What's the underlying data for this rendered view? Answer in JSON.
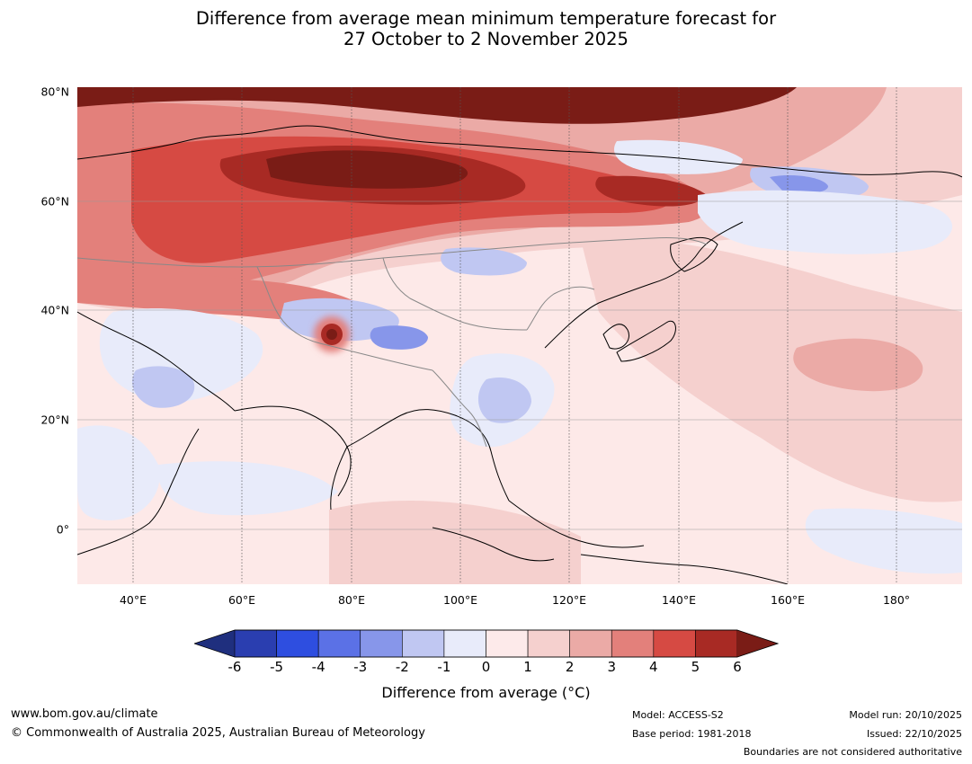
{
  "title": {
    "line1": "Difference from average mean minimum temperature forecast for",
    "line2": "27 October to 2 November 2025"
  },
  "map": {
    "region": "Asia",
    "lat_range": [
      -10,
      80
    ],
    "lon_range": [
      30,
      190
    ],
    "lat_labels": [
      {
        "lat": 80,
        "text": "80°N"
      },
      {
        "lat": 60,
        "text": "60°N"
      },
      {
        "lat": 40,
        "text": "40°N"
      },
      {
        "lat": 20,
        "text": "20°N"
      },
      {
        "lat": 0,
        "text": "0°"
      }
    ],
    "lon_labels": [
      {
        "lon": 40,
        "text": "40°E"
      },
      {
        "lon": 60,
        "text": "60°E"
      },
      {
        "lon": 80,
        "text": "80°E"
      },
      {
        "lon": 100,
        "text": "100°E"
      },
      {
        "lon": 120,
        "text": "120°E"
      },
      {
        "lon": 140,
        "text": "140°E"
      },
      {
        "lon": 160,
        "text": "160°E"
      },
      {
        "lon": 180,
        "text": "180°"
      }
    ],
    "anomaly_regions": [
      {
        "name": "russia-warm",
        "value": 6
      },
      {
        "name": "arctic-warm",
        "value": 6
      },
      {
        "name": "central-asia-warm",
        "value": 4
      },
      {
        "name": "tibet-hotspot",
        "value": 6
      },
      {
        "name": "arabia-cool",
        "value": -2
      },
      {
        "name": "tibet-cool",
        "value": -3
      },
      {
        "name": "south-china-cool",
        "value": -2
      },
      {
        "name": "kamchatka-cool",
        "value": -3
      },
      {
        "name": "pacific-warm",
        "value": 2
      }
    ]
  },
  "colorbar": {
    "colors": [
      "#1f2f7e",
      "#2a3eb0",
      "#2e4ee0",
      "#5b71e6",
      "#8796ea",
      "#c0c7f2",
      "#e8ebfa",
      "#fdeaea",
      "#f5d0ce",
      "#ebaaa6",
      "#e3807b",
      "#d64a43",
      "#a82a24",
      "#7a1c16"
    ],
    "ticks": [
      "-6",
      "-5",
      "-4",
      "-3",
      "-2",
      "-1",
      "0",
      "1",
      "2",
      "3",
      "4",
      "5",
      "6"
    ],
    "label": "Difference from average ($^\\circ$C)",
    "label_display": "Difference from average (°C)"
  },
  "footer": {
    "website": "www.bom.gov.au/climate",
    "copyright": "© Commonwealth of Australia 2025, Australian Bureau of Meteorology",
    "model": "Model: ACCESS-S2",
    "base_period": "Base period: 1981-2018",
    "model_run": "Model run: 20/10/2025",
    "issued": "Issued: 22/10/2025",
    "disclaimer": "Boundaries are not considered authoritative"
  }
}
